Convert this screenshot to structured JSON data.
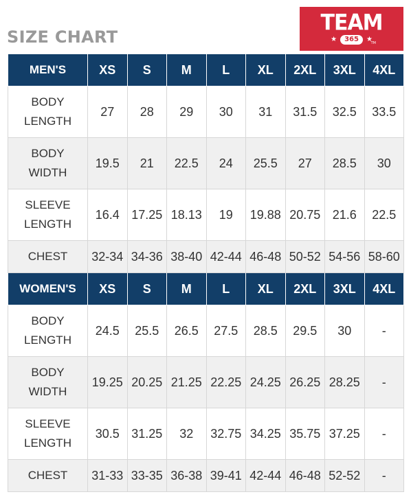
{
  "title": "SIZE CHART",
  "logo": {
    "word": "TEAM",
    "number": "365",
    "tm": "TM"
  },
  "sizes": [
    "XS",
    "S",
    "M",
    "L",
    "XL",
    "2XL",
    "3XL",
    "4XL"
  ],
  "mens": {
    "header": "MEN'S",
    "rows": [
      {
        "label": [
          "BODY",
          "LENGTH"
        ],
        "values": [
          "27",
          "28",
          "29",
          "30",
          "31",
          "31.5",
          "32.5",
          "33.5"
        ]
      },
      {
        "label": [
          "BODY",
          "WIDTH"
        ],
        "values": [
          "19.5",
          "21",
          "22.5",
          "24",
          "25.5",
          "27",
          "28.5",
          "30"
        ]
      },
      {
        "label": [
          "SLEEVE",
          "LENGTH"
        ],
        "values": [
          "16.4",
          "17.25",
          "18.13",
          "19",
          "19.88",
          "20.75",
          "21.6",
          "22.5"
        ]
      },
      {
        "label": [
          "CHEST"
        ],
        "values": [
          "32-34",
          "34-36",
          "38-40",
          "42-44",
          "46-48",
          "50-52",
          "54-56",
          "58-60"
        ]
      }
    ]
  },
  "womens": {
    "header": "WOMEN'S",
    "rows": [
      {
        "label": [
          "BODY",
          "LENGTH"
        ],
        "values": [
          "24.5",
          "25.5",
          "26.5",
          "27.5",
          "28.5",
          "29.5",
          "30",
          "-"
        ]
      },
      {
        "label": [
          "BODY",
          "WIDTH"
        ],
        "values": [
          "19.25",
          "20.25",
          "21.25",
          "22.25",
          "24.25",
          "26.25",
          "28.25",
          "-"
        ]
      },
      {
        "label": [
          "SLEEVE",
          "LENGTH"
        ],
        "values": [
          "30.5",
          "31.25",
          "32",
          "32.75",
          "34.25",
          "35.75",
          "37.25",
          "-"
        ]
      },
      {
        "label": [
          "CHEST"
        ],
        "values": [
          "31-33",
          "33-35",
          "36-38",
          "39-41",
          "42-44",
          "46-48",
          "52-52",
          "-"
        ]
      }
    ]
  }
}
